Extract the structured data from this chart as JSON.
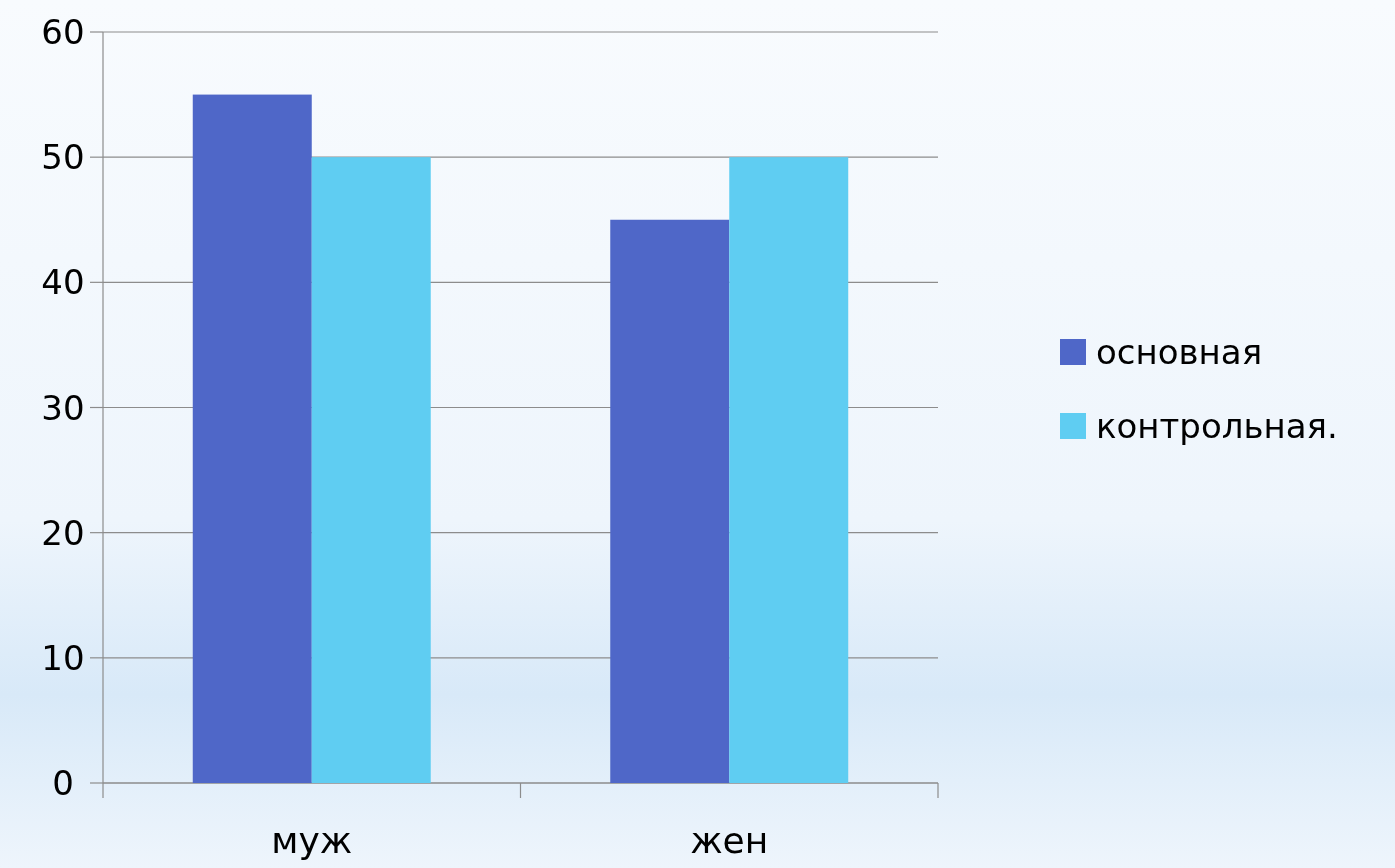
{
  "chart_data": {
    "type": "bar",
    "categories": [
      "муж",
      "жен"
    ],
    "series": [
      {
        "name": "основная",
        "color": "#4f67c8",
        "values": [
          55,
          45
        ]
      },
      {
        "name": "контрольная.",
        "color": "#5fcdf2",
        "values": [
          50,
          50
        ]
      }
    ],
    "ylim": [
      0,
      60
    ],
    "yticks": [
      0,
      10,
      20,
      30,
      40,
      50,
      60
    ],
    "grid": "y",
    "legend": "right"
  }
}
